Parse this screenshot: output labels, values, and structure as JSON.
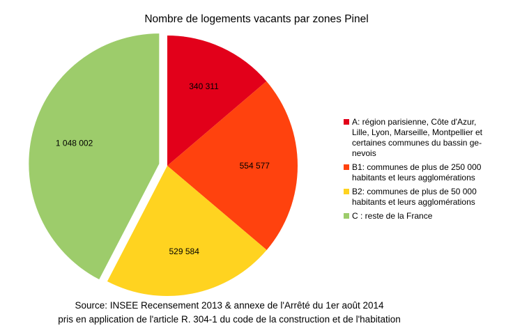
{
  "chart_data": {
    "type": "pie",
    "title": "Nombre de logements vacants par zones Pinel",
    "categories": [
      "A: région parisienne, Côte d'Azur, Lille, Lyon, Marseille, Montpellier et certaines communes du bassin genevois",
      "B1: communes de plus de 250 000 habitants et leurs agglomérations",
      "B2: communes de plus de 50 000 habitants et leurs agglomérations",
      "C : reste de la France"
    ],
    "values": [
      340311,
      554577,
      529584,
      1048002
    ],
    "data_labels": [
      "340 311",
      "554 577",
      "529 584",
      "1 048 002"
    ],
    "colors": [
      "#e2001a",
      "#ff420e",
      "#ffd320",
      "#9dcc6b"
    ],
    "exploded": [
      false,
      false,
      false,
      true
    ],
    "legend_position": "right",
    "legend": [
      {
        "lines": [
          "A: région parisienne, Côte d'Azur,",
          "Lille, Lyon, Marseille, Montpellier et",
          "certaines communes du bassin ge-",
          "nevois"
        ]
      },
      {
        "lines": [
          "B1: communes de plus de 250 000",
          "habitants et leurs agglomérations"
        ]
      },
      {
        "lines": [
          "B2: communes de plus de 50 000",
          "habitants et leurs agglomérations"
        ]
      },
      {
        "lines": [
          "C : reste de la France"
        ]
      }
    ]
  },
  "source": {
    "line1": "Source: INSEE Recensement 2013 & annexe de l'Arrêté du 1er août 2014",
    "line2": "pris en application de l'article R. 304-1 du code de la construction et de l'habitation"
  }
}
